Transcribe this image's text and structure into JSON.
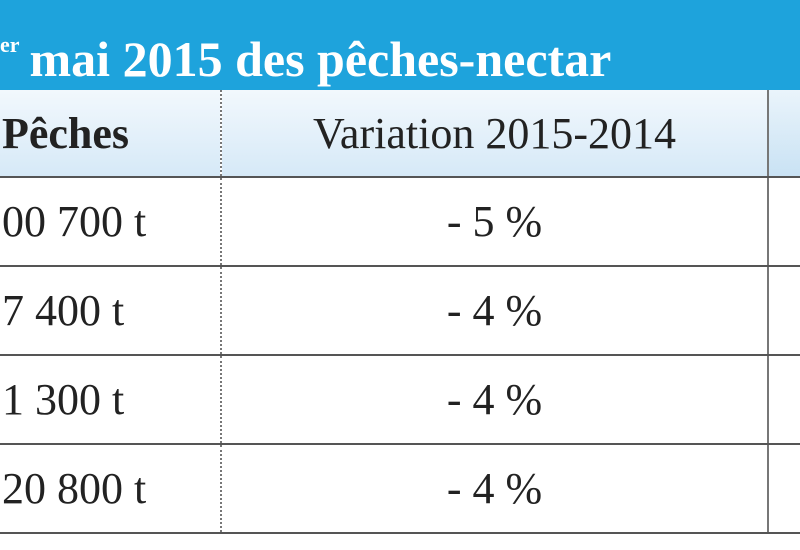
{
  "header": {
    "title_sup": "er",
    "title": "mai 2015 des pêches-nectar"
  },
  "table": {
    "columns": [
      "Pêches",
      "Variation 2015-2014"
    ],
    "rows": [
      [
        "00 700 t",
        "- 5 %"
      ],
      [
        "7 400 t",
        "- 4 %"
      ],
      [
        "1 300 t",
        "- 4 %"
      ],
      [
        "20 800 t",
        "- 4 %"
      ]
    ]
  }
}
